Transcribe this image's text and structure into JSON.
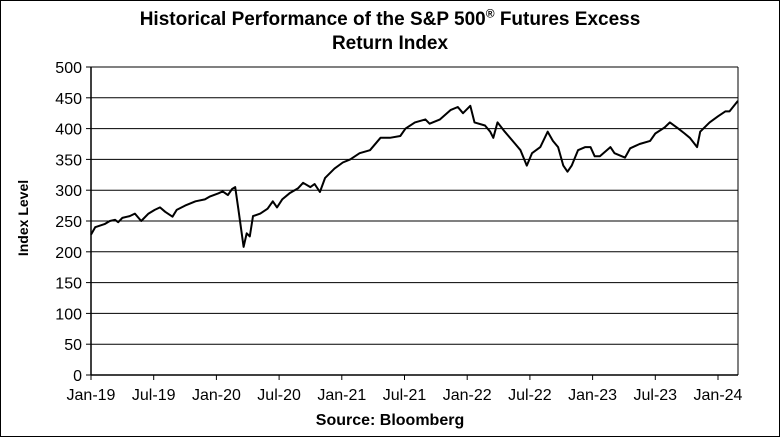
{
  "chart_data": {
    "type": "line",
    "title_main": "Historical  Performance  of the S&P 500",
    "title_sup": "®",
    "title_end": " Futures Excess",
    "title_line2": "Return Index",
    "ylabel": "Index Level",
    "xlabel": "Source: Bloomberg",
    "ylim": [
      0,
      500
    ],
    "yticks": [
      0,
      50,
      100,
      150,
      200,
      250,
      300,
      350,
      400,
      450,
      500
    ],
    "x_units": "months since Jan-2019",
    "xlim": [
      0,
      62
    ],
    "xticks": [
      {
        "x": 0,
        "label": "Jan-19"
      },
      {
        "x": 6,
        "label": "Jul-19"
      },
      {
        "x": 12,
        "label": "Jan-20"
      },
      {
        "x": 18,
        "label": "Jul-20"
      },
      {
        "x": 24,
        "label": "Jan-21"
      },
      {
        "x": 30,
        "label": "Jul-21"
      },
      {
        "x": 36,
        "label": "Jan-22"
      },
      {
        "x": 42,
        "label": "Jul-22"
      },
      {
        "x": 48,
        "label": "Jan-23"
      },
      {
        "x": 54,
        "label": "Jul-23"
      },
      {
        "x": 60,
        "label": "Jan-24"
      }
    ],
    "grid": true,
    "series": [
      {
        "name": "S&P 500 Futures Excess Return Index",
        "x": [
          0,
          0.4,
          1.3,
          1.8,
          2.3,
          2.6,
          3.0,
          3.7,
          4.2,
          4.8,
          5.5,
          6.1,
          6.6,
          7.1,
          7.8,
          8.2,
          9.0,
          10.0,
          10.9,
          11.4,
          12.2,
          12.6,
          13.1,
          13.5,
          13.8,
          14.1,
          14.6,
          14.9,
          15.2,
          15.5,
          16.2,
          16.9,
          17.4,
          17.8,
          18.3,
          19.0,
          19.8,
          20.3,
          21.0,
          21.4,
          21.9,
          22.4,
          23.3,
          24.1,
          24.8,
          25.7,
          26.7,
          27.7,
          28.6,
          29.6,
          30.1,
          31.0,
          32.0,
          32.4,
          33.4,
          34.4,
          35.1,
          35.6,
          36.3,
          36.7,
          37.7,
          38.2,
          38.5,
          38.9,
          39.6,
          40.6,
          41.1,
          41.7,
          42.2,
          43.0,
          43.7,
          44.2,
          44.7,
          45.2,
          45.6,
          46.0,
          46.6,
          47.3,
          47.8,
          48.2,
          48.7,
          49.7,
          50.1,
          50.8,
          51.1,
          51.6,
          52.5,
          53.5,
          54.0,
          54.9,
          55.4,
          56.2,
          56.8,
          57.3,
          58.0,
          58.3,
          59.2,
          60.0,
          60.7,
          61.1,
          61.9
        ],
        "values": [
          228,
          240,
          245,
          250,
          252,
          248,
          255,
          258,
          262,
          250,
          262,
          268,
          272,
          265,
          257,
          268,
          275,
          282,
          285,
          290,
          295,
          298,
          292,
          302,
          305,
          270,
          208,
          230,
          225,
          258,
          262,
          270,
          282,
          272,
          285,
          295,
          303,
          312,
          305,
          310,
          297,
          320,
          335,
          345,
          350,
          360,
          365,
          385,
          385,
          388,
          400,
          410,
          415,
          408,
          415,
          430,
          435,
          425,
          437,
          410,
          405,
          395,
          385,
          410,
          395,
          375,
          365,
          340,
          360,
          370,
          395,
          380,
          370,
          340,
          330,
          340,
          365,
          370,
          370,
          355,
          355,
          370,
          360,
          355,
          353,
          368,
          375,
          380,
          392,
          402,
          410,
          400,
          392,
          385,
          370,
          395,
          410,
          420,
          428,
          428,
          445
        ]
      }
    ]
  }
}
